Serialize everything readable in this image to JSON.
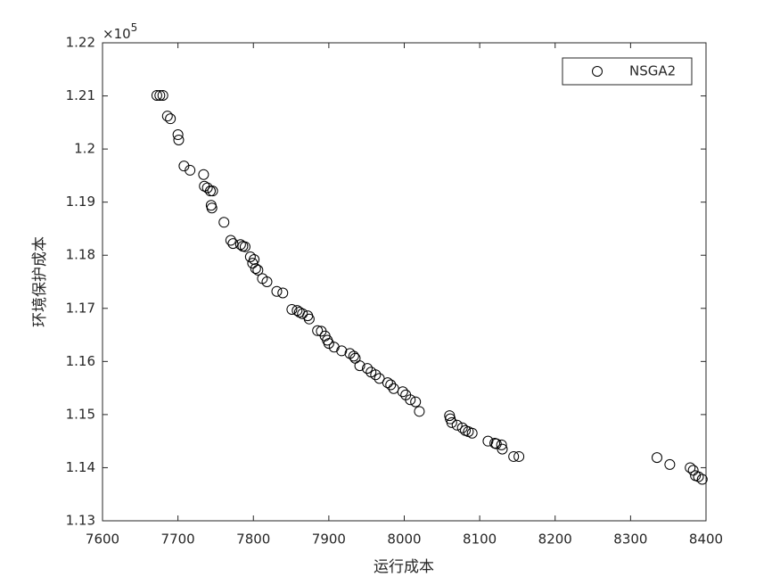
{
  "chart_data": {
    "type": "scatter",
    "xlabel": "运行成本",
    "ylabel": "环境保护成本",
    "y_multiplier": {
      "base": "×10",
      "exponent": "5"
    },
    "xlim": [
      7600,
      8400
    ],
    "xticks": [
      7600,
      7700,
      7800,
      7900,
      8000,
      8100,
      8200,
      8300,
      8400
    ],
    "ylim": [
      1.13,
      1.22
    ],
    "yticks": [
      1.13,
      1.14,
      1.15,
      1.16,
      1.17,
      1.18,
      1.19,
      1.2,
      1.21,
      1.22
    ],
    "legend": "upper right",
    "series": [
      {
        "name": "NSGA2",
        "color": "#000000",
        "x": [
          7672,
          7676,
          7680,
          7686,
          7690,
          7700,
          7701,
          7708,
          7716,
          7734,
          7735,
          7739,
          7743,
          7746,
          7744,
          7745,
          7761,
          7770,
          7773,
          7783,
          7786,
          7789,
          7796,
          7801,
          7799,
          7803,
          7806,
          7812,
          7818,
          7831,
          7839,
          7851,
          7858,
          7861,
          7865,
          7872,
          7874,
          7885,
          7890,
          7895,
          7898,
          7900,
          7907,
          7917,
          7928,
          7933,
          7935,
          7941,
          7951,
          7956,
          7962,
          7967,
          7978,
          7982,
          7986,
          7998,
          8002,
          8008,
          8015,
          8020,
          8060,
          8061,
          8063,
          8070,
          8077,
          8081,
          8085,
          8090,
          8111,
          8120,
          8122,
          8129,
          8130,
          8145,
          8152,
          8335,
          8352,
          8379,
          8383,
          8386,
          8390,
          8395
        ],
        "values": [
          1.2101,
          1.2101,
          1.2101,
          1.2062,
          1.2057,
          1.2027,
          1.2017,
          1.1968,
          1.196,
          1.1952,
          1.193,
          1.1927,
          1.1921,
          1.1921,
          1.1894,
          1.1889,
          1.1862,
          1.1828,
          1.1822,
          1.182,
          1.1817,
          1.1816,
          1.1797,
          1.1792,
          1.1785,
          1.1775,
          1.1772,
          1.1756,
          1.175,
          1.1732,
          1.1729,
          1.1698,
          1.1696,
          1.1693,
          1.169,
          1.1686,
          1.168,
          1.1658,
          1.1657,
          1.1648,
          1.164,
          1.1634,
          1.1627,
          1.162,
          1.1615,
          1.161,
          1.1606,
          1.1592,
          1.1587,
          1.158,
          1.1575,
          1.1568,
          1.156,
          1.1556,
          1.1549,
          1.1543,
          1.1537,
          1.1528,
          1.1524,
          1.1506,
          1.1498,
          1.1492,
          1.1485,
          1.148,
          1.1475,
          1.147,
          1.1468,
          1.1465,
          1.145,
          1.1446,
          1.1445,
          1.1443,
          1.1435,
          1.1421,
          1.1421,
          1.1419,
          1.1406,
          1.14,
          1.1395,
          1.1385,
          1.1383,
          1.1378
        ]
      }
    ]
  }
}
